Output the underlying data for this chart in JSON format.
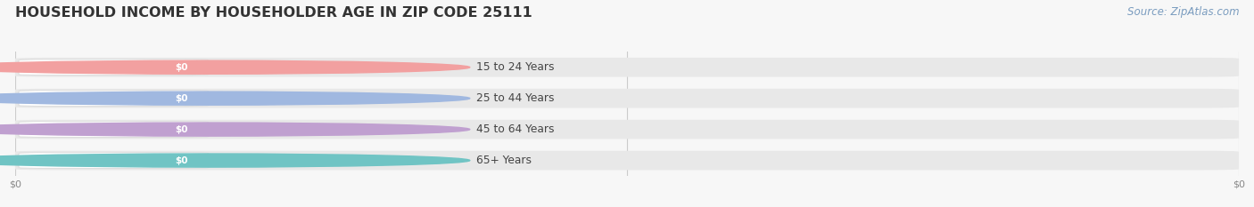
{
  "title": "HOUSEHOLD INCOME BY HOUSEHOLDER AGE IN ZIP CODE 25111",
  "source": "Source: ZipAtlas.com",
  "categories": [
    "15 to 24 Years",
    "25 to 44 Years",
    "45 to 64 Years",
    "65+ Years"
  ],
  "values": [
    0,
    0,
    0,
    0
  ],
  "bar_colors": [
    "#f2a0a0",
    "#a0b8e0",
    "#c0a0d0",
    "#70c4c4"
  ],
  "background_color": "#f7f7f7",
  "bar_bg_color": "#e8e8e8",
  "title_fontsize": 11.5,
  "source_fontsize": 8.5,
  "xlim": [
    0,
    1
  ]
}
